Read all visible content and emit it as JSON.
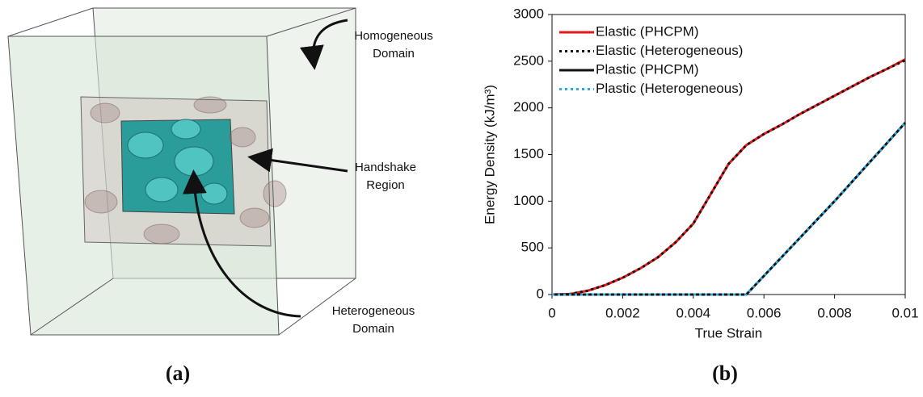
{
  "panel_a": {
    "labels": [
      {
        "lines": [
          "Homogeneous",
          "Domain"
        ]
      },
      {
        "lines": [
          "Handshake",
          "Region"
        ]
      },
      {
        "lines": [
          "Heterogeneous",
          "Domain"
        ]
      }
    ],
    "caption": "(a)"
  },
  "caption_b": "(b)",
  "chart_data": {
    "type": "line",
    "x_label": "True Strain",
    "y_label": "Energy Density (kJ/m³)",
    "x": [
      0,
      0.0005,
      0.001,
      0.0015,
      0.002,
      0.0025,
      0.003,
      0.0035,
      0.004,
      0.0045,
      0.005,
      0.0055,
      0.006,
      0.0065,
      0.007,
      0.0075,
      0.008,
      0.0085,
      0.009,
      0.0095,
      0.01
    ],
    "series": [
      {
        "name": "Elastic (PHCPM)",
        "color": "#e31a1c",
        "style": "solid",
        "values": [
          0,
          5,
          40,
          100,
          180,
          280,
          400,
          560,
          760,
          1080,
          1400,
          1600,
          1720,
          1820,
          1930,
          2030,
          2130,
          2230,
          2330,
          2420,
          2520
        ]
      },
      {
        "name": "Elastic (Heterogeneous)",
        "color": "#111111",
        "style": "dotted",
        "values": [
          0,
          5,
          40,
          100,
          180,
          280,
          400,
          560,
          760,
          1080,
          1400,
          1600,
          1720,
          1820,
          1930,
          2030,
          2130,
          2230,
          2330,
          2420,
          2510
        ]
      },
      {
        "name": "Plastic (PHCPM)",
        "color": "#111111",
        "style": "solid",
        "values": [
          0,
          0,
          0,
          0,
          0,
          0,
          0,
          0,
          0,
          0,
          0,
          0,
          200,
          400,
          600,
          800,
          1000,
          1210,
          1420,
          1630,
          1840
        ]
      },
      {
        "name": "Plastic (Heterogeneous)",
        "color": "#29abe2",
        "style": "dotted",
        "values": [
          0,
          0,
          0,
          0,
          0,
          0,
          0,
          0,
          0,
          0,
          0,
          0,
          200,
          400,
          600,
          800,
          1000,
          1210,
          1420,
          1630,
          1840
        ]
      }
    ],
    "xlim": [
      0,
      0.01
    ],
    "xticks": [
      0,
      0.002,
      0.004,
      0.006,
      0.008,
      0.01
    ],
    "ylim": [
      0,
      3000
    ],
    "yticks": [
      0,
      500,
      1000,
      1500,
      2000,
      2500,
      3000
    ],
    "legend": "upper-left"
  }
}
